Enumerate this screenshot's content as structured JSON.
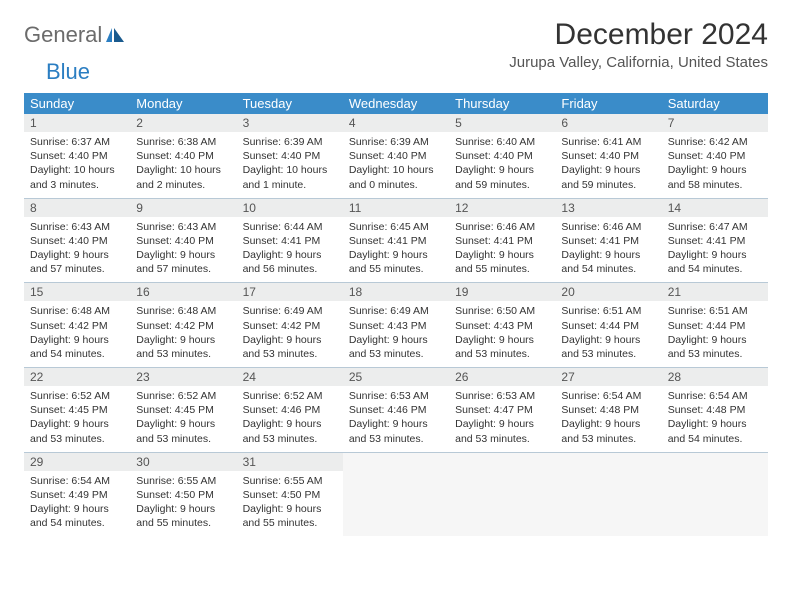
{
  "logo": {
    "general": "General",
    "blue": "Blue"
  },
  "header": {
    "month_title": "December 2024",
    "location": "Jurupa Valley, California, United States"
  },
  "colors": {
    "header_bg": "#3a8cc9",
    "header_text": "#ffffff",
    "daynum_bg": "#eceded",
    "cell_border": "#b8c9d6",
    "logo_blue": "#2b7ec2"
  },
  "weekdays": [
    "Sunday",
    "Monday",
    "Tuesday",
    "Wednesday",
    "Thursday",
    "Friday",
    "Saturday"
  ],
  "weeks": [
    [
      {
        "n": "1",
        "sr": "6:37 AM",
        "ss": "4:40 PM",
        "dl": "10 hours and 3 minutes."
      },
      {
        "n": "2",
        "sr": "6:38 AM",
        "ss": "4:40 PM",
        "dl": "10 hours and 2 minutes."
      },
      {
        "n": "3",
        "sr": "6:39 AM",
        "ss": "4:40 PM",
        "dl": "10 hours and 1 minute."
      },
      {
        "n": "4",
        "sr": "6:39 AM",
        "ss": "4:40 PM",
        "dl": "10 hours and 0 minutes."
      },
      {
        "n": "5",
        "sr": "6:40 AM",
        "ss": "4:40 PM",
        "dl": "9 hours and 59 minutes."
      },
      {
        "n": "6",
        "sr": "6:41 AM",
        "ss": "4:40 PM",
        "dl": "9 hours and 59 minutes."
      },
      {
        "n": "7",
        "sr": "6:42 AM",
        "ss": "4:40 PM",
        "dl": "9 hours and 58 minutes."
      }
    ],
    [
      {
        "n": "8",
        "sr": "6:43 AM",
        "ss": "4:40 PM",
        "dl": "9 hours and 57 minutes."
      },
      {
        "n": "9",
        "sr": "6:43 AM",
        "ss": "4:40 PM",
        "dl": "9 hours and 57 minutes."
      },
      {
        "n": "10",
        "sr": "6:44 AM",
        "ss": "4:41 PM",
        "dl": "9 hours and 56 minutes."
      },
      {
        "n": "11",
        "sr": "6:45 AM",
        "ss": "4:41 PM",
        "dl": "9 hours and 55 minutes."
      },
      {
        "n": "12",
        "sr": "6:46 AM",
        "ss": "4:41 PM",
        "dl": "9 hours and 55 minutes."
      },
      {
        "n": "13",
        "sr": "6:46 AM",
        "ss": "4:41 PM",
        "dl": "9 hours and 54 minutes."
      },
      {
        "n": "14",
        "sr": "6:47 AM",
        "ss": "4:41 PM",
        "dl": "9 hours and 54 minutes."
      }
    ],
    [
      {
        "n": "15",
        "sr": "6:48 AM",
        "ss": "4:42 PM",
        "dl": "9 hours and 54 minutes."
      },
      {
        "n": "16",
        "sr": "6:48 AM",
        "ss": "4:42 PM",
        "dl": "9 hours and 53 minutes."
      },
      {
        "n": "17",
        "sr": "6:49 AM",
        "ss": "4:42 PM",
        "dl": "9 hours and 53 minutes."
      },
      {
        "n": "18",
        "sr": "6:49 AM",
        "ss": "4:43 PM",
        "dl": "9 hours and 53 minutes."
      },
      {
        "n": "19",
        "sr": "6:50 AM",
        "ss": "4:43 PM",
        "dl": "9 hours and 53 minutes."
      },
      {
        "n": "20",
        "sr": "6:51 AM",
        "ss": "4:44 PM",
        "dl": "9 hours and 53 minutes."
      },
      {
        "n": "21",
        "sr": "6:51 AM",
        "ss": "4:44 PM",
        "dl": "9 hours and 53 minutes."
      }
    ],
    [
      {
        "n": "22",
        "sr": "6:52 AM",
        "ss": "4:45 PM",
        "dl": "9 hours and 53 minutes."
      },
      {
        "n": "23",
        "sr": "6:52 AM",
        "ss": "4:45 PM",
        "dl": "9 hours and 53 minutes."
      },
      {
        "n": "24",
        "sr": "6:52 AM",
        "ss": "4:46 PM",
        "dl": "9 hours and 53 minutes."
      },
      {
        "n": "25",
        "sr": "6:53 AM",
        "ss": "4:46 PM",
        "dl": "9 hours and 53 minutes."
      },
      {
        "n": "26",
        "sr": "6:53 AM",
        "ss": "4:47 PM",
        "dl": "9 hours and 53 minutes."
      },
      {
        "n": "27",
        "sr": "6:54 AM",
        "ss": "4:48 PM",
        "dl": "9 hours and 53 minutes."
      },
      {
        "n": "28",
        "sr": "6:54 AM",
        "ss": "4:48 PM",
        "dl": "9 hours and 54 minutes."
      }
    ],
    [
      {
        "n": "29",
        "sr": "6:54 AM",
        "ss": "4:49 PM",
        "dl": "9 hours and 54 minutes."
      },
      {
        "n": "30",
        "sr": "6:55 AM",
        "ss": "4:50 PM",
        "dl": "9 hours and 55 minutes."
      },
      {
        "n": "31",
        "sr": "6:55 AM",
        "ss": "4:50 PM",
        "dl": "9 hours and 55 minutes."
      },
      null,
      null,
      null,
      null
    ]
  ],
  "labels": {
    "sunrise": "Sunrise:",
    "sunset": "Sunset:",
    "daylight": "Daylight:"
  }
}
